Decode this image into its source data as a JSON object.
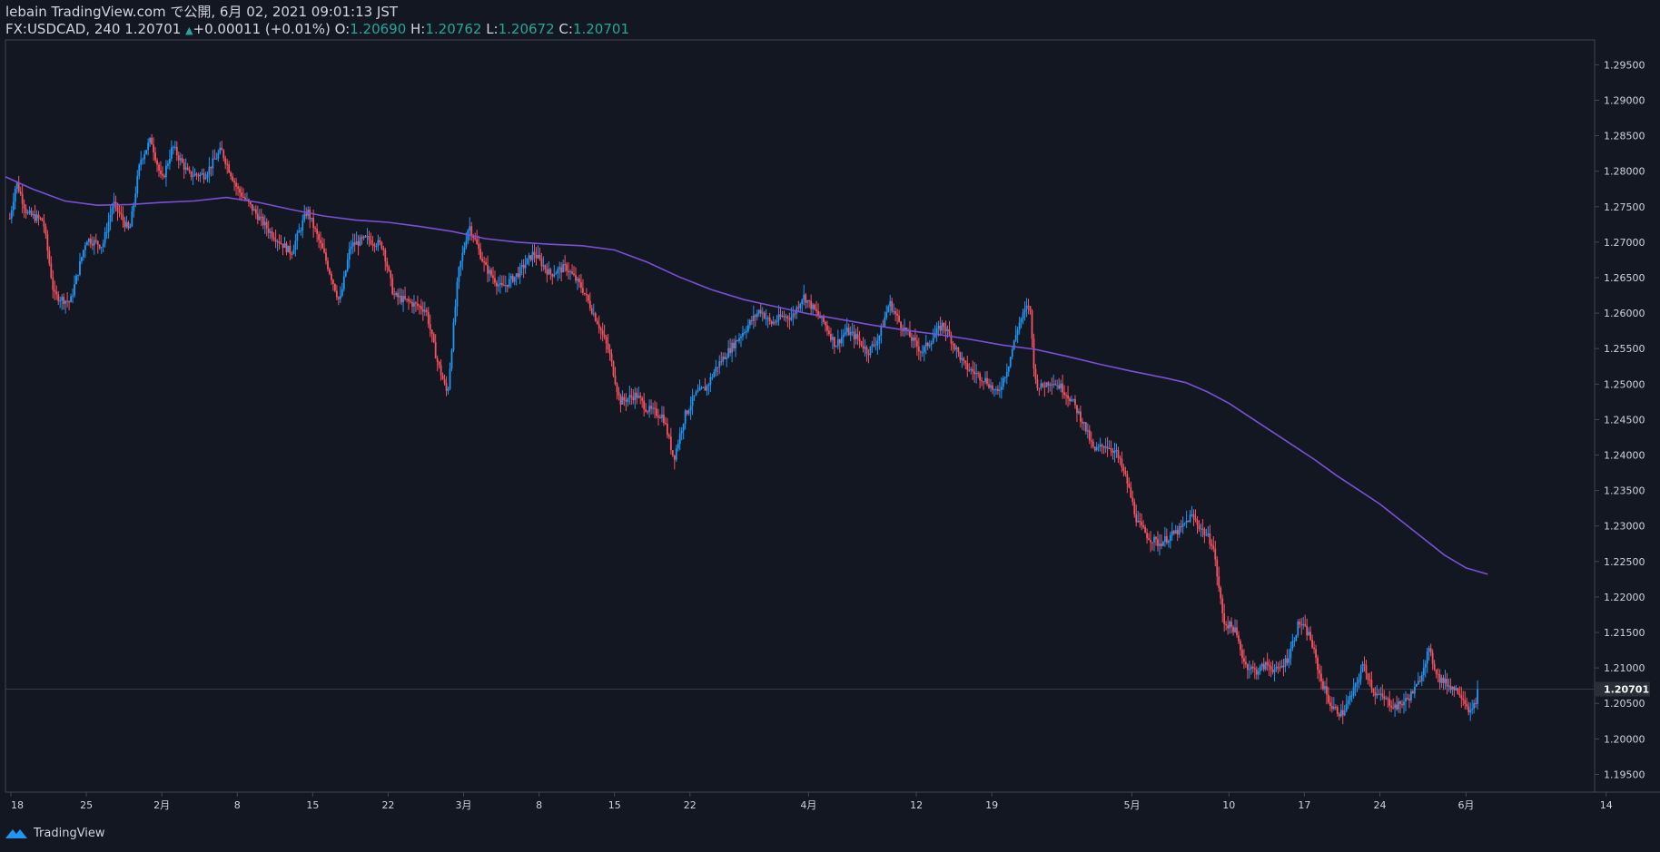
{
  "header": {
    "publish_line": "lebain TradingView.com で公開, 6月 02, 2021 09:01:13 JST",
    "symbol_interval": "FX:USDCAD, 240",
    "last": "1.20701",
    "change": "+0.00011 (+0.01%)",
    "o_label": "O:",
    "o": "1.20690",
    "h_label": "H:",
    "h": "1.20762",
    "l_label": "L:",
    "l": "1.20672",
    "c_label": "C:",
    "c": "1.20701"
  },
  "footer": {
    "brand": "TradingView"
  },
  "colors": {
    "background": "#131722",
    "up": "#2196f3",
    "down": "#f7525f",
    "ma": "#7b4fd6",
    "text": "#d1d4dc",
    "value": "#26a69a"
  },
  "chart_data": {
    "type": "candlestick",
    "symbol": "FX:USDCAD",
    "interval": "240",
    "ylim": [
      1.1925,
      1.2985
    ],
    "y_ticks": [
      "1.19500",
      "1.20000",
      "1.20500",
      "1.21000",
      "1.21500",
      "1.22000",
      "1.22500",
      "1.23000",
      "1.23500",
      "1.24000",
      "1.24500",
      "1.25000",
      "1.25500",
      "1.26000",
      "1.26500",
      "1.27000",
      "1.27500",
      "1.28000",
      "1.28500",
      "1.29000",
      "1.29500"
    ],
    "last_price_label": "1.20701",
    "last_price": 1.20701,
    "x_ticks": [
      {
        "label": "18",
        "day": 0
      },
      {
        "label": "25",
        "day": 7
      },
      {
        "label": "2月",
        "day": 14
      },
      {
        "label": "8",
        "day": 21
      },
      {
        "label": "15",
        "day": 28
      },
      {
        "label": "22",
        "day": 35
      },
      {
        "label": "3月",
        "day": 42
      },
      {
        "label": "8",
        "day": 49
      },
      {
        "label": "15",
        "day": 56
      },
      {
        "label": "22",
        "day": 63
      },
      {
        "label": "4月",
        "day": 74
      },
      {
        "label": "12",
        "day": 84
      },
      {
        "label": "19",
        "day": 91
      },
      {
        "label": "5月",
        "day": 104
      },
      {
        "label": "10",
        "day": 113
      },
      {
        "label": "17",
        "day": 120
      },
      {
        "label": "24",
        "day": 127
      },
      {
        "label": "6月",
        "day": 135
      },
      {
        "label": "14",
        "day": 148
      }
    ],
    "price_path": [
      [
        -0.2,
        1.2725
      ],
      [
        0.5,
        1.2785
      ],
      [
        1.5,
        1.274
      ],
      [
        3,
        1.273
      ],
      [
        4,
        1.2625
      ],
      [
        5.5,
        1.2615
      ],
      [
        7,
        1.2705
      ],
      [
        8.5,
        1.2695
      ],
      [
        9.5,
        1.2755
      ],
      [
        11,
        1.2715
      ],
      [
        12,
        1.2815
      ],
      [
        13,
        1.2845
      ],
      [
        14,
        1.2785
      ],
      [
        15,
        1.2835
      ],
      [
        16.5,
        1.2795
      ],
      [
        18,
        1.2795
      ],
      [
        19.5,
        1.283
      ],
      [
        21,
        1.2775
      ],
      [
        22.5,
        1.2745
      ],
      [
        24,
        1.2715
      ],
      [
        26,
        1.2685
      ],
      [
        27.5,
        1.2745
      ],
      [
        29,
        1.2685
      ],
      [
        30.5,
        1.2615
      ],
      [
        31.5,
        1.2695
      ],
      [
        33,
        1.2705
      ],
      [
        34.5,
        1.2695
      ],
      [
        35.5,
        1.2625
      ],
      [
        37,
        1.2615
      ],
      [
        38.5,
        1.2605
      ],
      [
        39.5,
        1.2535
      ],
      [
        40.5,
        1.2485
      ],
      [
        41.5,
        1.2655
      ],
      [
        42.5,
        1.2725
      ],
      [
        44,
        1.2665
      ],
      [
        45.5,
        1.2635
      ],
      [
        47,
        1.2655
      ],
      [
        48.5,
        1.2685
      ],
      [
        50,
        1.2655
      ],
      [
        51.5,
        1.2665
      ],
      [
        53,
        1.2635
      ],
      [
        54.5,
        1.2585
      ],
      [
        55.5,
        1.2545
      ],
      [
        56.5,
        1.2475
      ],
      [
        58,
        1.2485
      ],
      [
        59,
        1.2465
      ],
      [
        60.5,
        1.2455
      ],
      [
        61.5,
        1.2395
      ],
      [
        62.5,
        1.2455
      ],
      [
        63.5,
        1.2485
      ],
      [
        64.5,
        1.2495
      ],
      [
        65.5,
        1.2525
      ],
      [
        66.5,
        1.2545
      ],
      [
        67.5,
        1.2565
      ],
      [
        68.5,
        1.2585
      ],
      [
        69.5,
        1.2605
      ],
      [
        70.5,
        1.2585
      ],
      [
        71.5,
        1.2595
      ],
      [
        72.5,
        1.2595
      ],
      [
        73.5,
        1.2625
      ],
      [
        74.5,
        1.2605
      ],
      [
        75.5,
        1.2585
      ],
      [
        76.5,
        1.2555
      ],
      [
        77.5,
        1.2575
      ],
      [
        78.5,
        1.2565
      ],
      [
        79.5,
        1.2545
      ],
      [
        80.5,
        1.2565
      ],
      [
        81.5,
        1.2615
      ],
      [
        82.5,
        1.2585
      ],
      [
        83.5,
        1.2565
      ],
      [
        84.5,
        1.2545
      ],
      [
        85.5,
        1.2565
      ],
      [
        86.5,
        1.2585
      ],
      [
        87.5,
        1.2555
      ],
      [
        88.5,
        1.2525
      ],
      [
        89.5,
        1.2515
      ],
      [
        90.5,
        1.2505
      ],
      [
        91.5,
        1.2485
      ],
      [
        92.5,
        1.2525
      ],
      [
        93.5,
        1.2585
      ],
      [
        94.5,
        1.2615
      ],
      [
        95,
        1.2505
      ],
      [
        95.5,
        1.2495
      ],
      [
        96.5,
        1.2505
      ],
      [
        97.5,
        1.2495
      ],
      [
        98.5,
        1.2475
      ],
      [
        99.5,
        1.2445
      ],
      [
        100.5,
        1.2405
      ],
      [
        101.5,
        1.2415
      ],
      [
        102.5,
        1.2405
      ],
      [
        103.5,
        1.2365
      ],
      [
        104.5,
        1.2305
      ],
      [
        105.5,
        1.2285
      ],
      [
        106.5,
        1.2275
      ],
      [
        107.5,
        1.2285
      ],
      [
        108.5,
        1.2295
      ],
      [
        109.5,
        1.2315
      ],
      [
        110.5,
        1.2295
      ],
      [
        111.5,
        1.2275
      ],
      [
        112.5,
        1.2165
      ],
      [
        113.5,
        1.2155
      ],
      [
        114.5,
        1.2105
      ],
      [
        115.5,
        1.2095
      ],
      [
        116.5,
        1.2105
      ],
      [
        117.5,
        1.2095
      ],
      [
        118.5,
        1.2115
      ],
      [
        119.5,
        1.2165
      ],
      [
        120.5,
        1.2145
      ],
      [
        121.5,
        1.2085
      ],
      [
        122.5,
        1.2045
      ],
      [
        123.5,
        1.2035
      ],
      [
        124.5,
        1.2065
      ],
      [
        125.5,
        1.2105
      ],
      [
        126.5,
        1.2065
      ],
      [
        127.5,
        1.2055
      ],
      [
        128.5,
        1.2045
      ],
      [
        129.5,
        1.2055
      ],
      [
        130.5,
        1.2075
      ],
      [
        131.5,
        1.2125
      ],
      [
        132.5,
        1.2085
      ],
      [
        133.5,
        1.2075
      ],
      [
        134.5,
        1.2065
      ],
      [
        135.5,
        1.2035
      ],
      [
        136.2,
        1.20701
      ]
    ],
    "ma_path": [
      [
        -0.5,
        1.2792
      ],
      [
        2,
        1.2775
      ],
      [
        5,
        1.2758
      ],
      [
        8,
        1.2752
      ],
      [
        11,
        1.2753
      ],
      [
        14,
        1.2756
      ],
      [
        17,
        1.2758
      ],
      [
        20,
        1.2763
      ],
      [
        23,
        1.2756
      ],
      [
        26,
        1.2746
      ],
      [
        29,
        1.2737
      ],
      [
        32,
        1.2731
      ],
      [
        35,
        1.2728
      ],
      [
        38,
        1.2722
      ],
      [
        41,
        1.2715
      ],
      [
        44,
        1.2705
      ],
      [
        47,
        1.27
      ],
      [
        50,
        1.2697
      ],
      [
        53,
        1.2695
      ],
      [
        56,
        1.2689
      ],
      [
        59,
        1.2672
      ],
      [
        62,
        1.2651
      ],
      [
        65,
        1.2633
      ],
      [
        68,
        1.2619
      ],
      [
        71,
        1.2609
      ],
      [
        74,
        1.2599
      ],
      [
        77,
        1.2591
      ],
      [
        80,
        1.2583
      ],
      [
        83,
        1.2576
      ],
      [
        86,
        1.257
      ],
      [
        89,
        1.2563
      ],
      [
        92,
        1.2555
      ],
      [
        95,
        1.2549
      ],
      [
        98,
        1.2539
      ],
      [
        101,
        1.2528
      ],
      [
        104,
        1.2518
      ],
      [
        107,
        1.2509
      ],
      [
        109,
        1.2502
      ],
      [
        111,
        1.2489
      ],
      [
        113,
        1.2473
      ],
      [
        115,
        1.2453
      ],
      [
        117,
        1.2433
      ],
      [
        119,
        1.2413
      ],
      [
        121,
        1.2393
      ],
      [
        123,
        1.2371
      ],
      [
        125,
        1.2351
      ],
      [
        127,
        1.2331
      ],
      [
        129,
        1.2307
      ],
      [
        131,
        1.2283
      ],
      [
        133,
        1.2259
      ],
      [
        135,
        1.2241
      ],
      [
        137,
        1.2232
      ]
    ]
  }
}
